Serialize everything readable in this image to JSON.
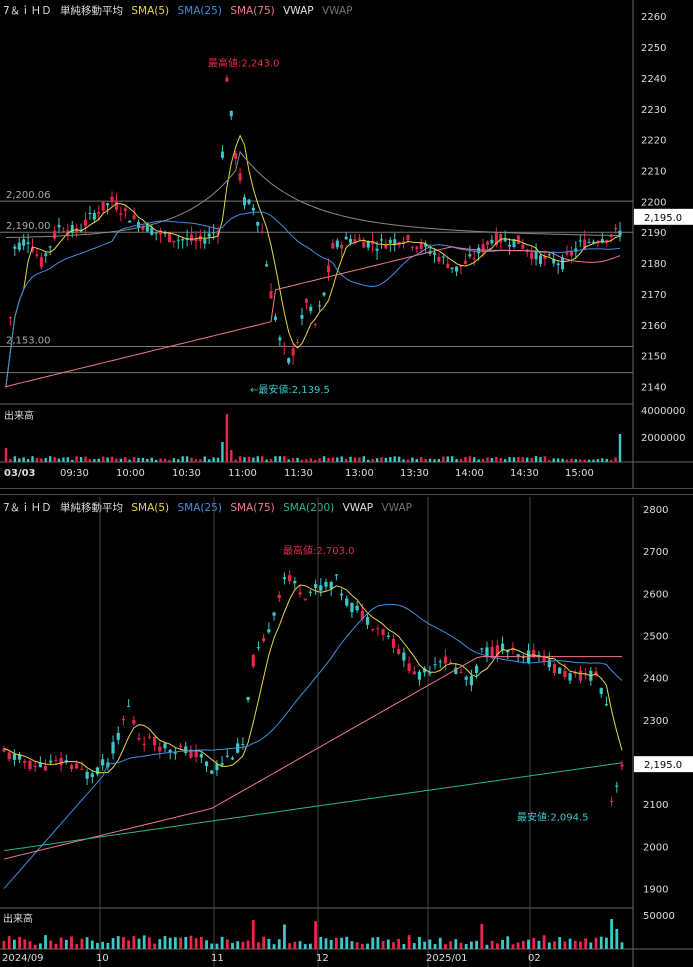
{
  "top": {
    "header": {
      "ticker": "7＆ｉＨＤ",
      "indicator": "単純移動平均",
      "items": [
        {
          "label": "SMA(5)",
          "color": "#e6d44a"
        },
        {
          "label": "SMA(25)",
          "color": "#3d8fe0"
        },
        {
          "label": "SMA(75)",
          "color": "#f07a8e"
        },
        {
          "label": "VWAP",
          "color": "#e0e0e0"
        },
        {
          "label": "VWAP",
          "color": "#707070"
        }
      ]
    },
    "y_ticks": [
      "2260",
      "2250",
      "2240",
      "2230",
      "2220",
      "2210",
      "2200",
      "2190",
      "2180",
      "2170",
      "2160",
      "2150",
      "2140"
    ],
    "x_ticks": [
      "03/03",
      "09:30",
      "10:00",
      "10:30",
      "11:00",
      "11:30",
      "13:00",
      "13:30",
      "14:00",
      "14:30",
      "15:00"
    ],
    "line_labels": [
      "2,200.06",
      "2,190.00",
      "2,153.00"
    ],
    "price_tag": "2,195.0",
    "high_label": "最高値:2,243.0",
    "low_label": "←最安値:2,139.5",
    "volume_label": "出来高",
    "volume_ticks": [
      "4000000",
      "2000000"
    ]
  },
  "bottom": {
    "header": {
      "ticker": "7＆ｉＨＤ",
      "indicator": "単純移動平均",
      "items": [
        {
          "label": "SMA(5)",
          "color": "#e6d44a"
        },
        {
          "label": "SMA(25)",
          "color": "#3d8fe0"
        },
        {
          "label": "SMA(75)",
          "color": "#f07a8e"
        },
        {
          "label": "SMA(200)",
          "color": "#2fb38a"
        },
        {
          "label": "VWAP",
          "color": "#e0e0e0"
        },
        {
          "label": "VWAP",
          "color": "#707070"
        }
      ]
    },
    "y_ticks": [
      "2800",
      "2700",
      "2600",
      "2500",
      "2400",
      "2300",
      "2200",
      "2100",
      "2000",
      "1900"
    ],
    "x_ticks": [
      "2024/09",
      "10",
      "11",
      "12",
      "2025/01",
      "02"
    ],
    "price_tag": "2,195.0",
    "high_label": "最高値:2,703.0",
    "low_label": "最安値:2,094.5",
    "volume_label": "出来高",
    "volume_ticks": [
      "50000"
    ]
  },
  "colors": {
    "up": "#e8274f",
    "down": "#3cc8c8",
    "grid": "#555555"
  }
}
